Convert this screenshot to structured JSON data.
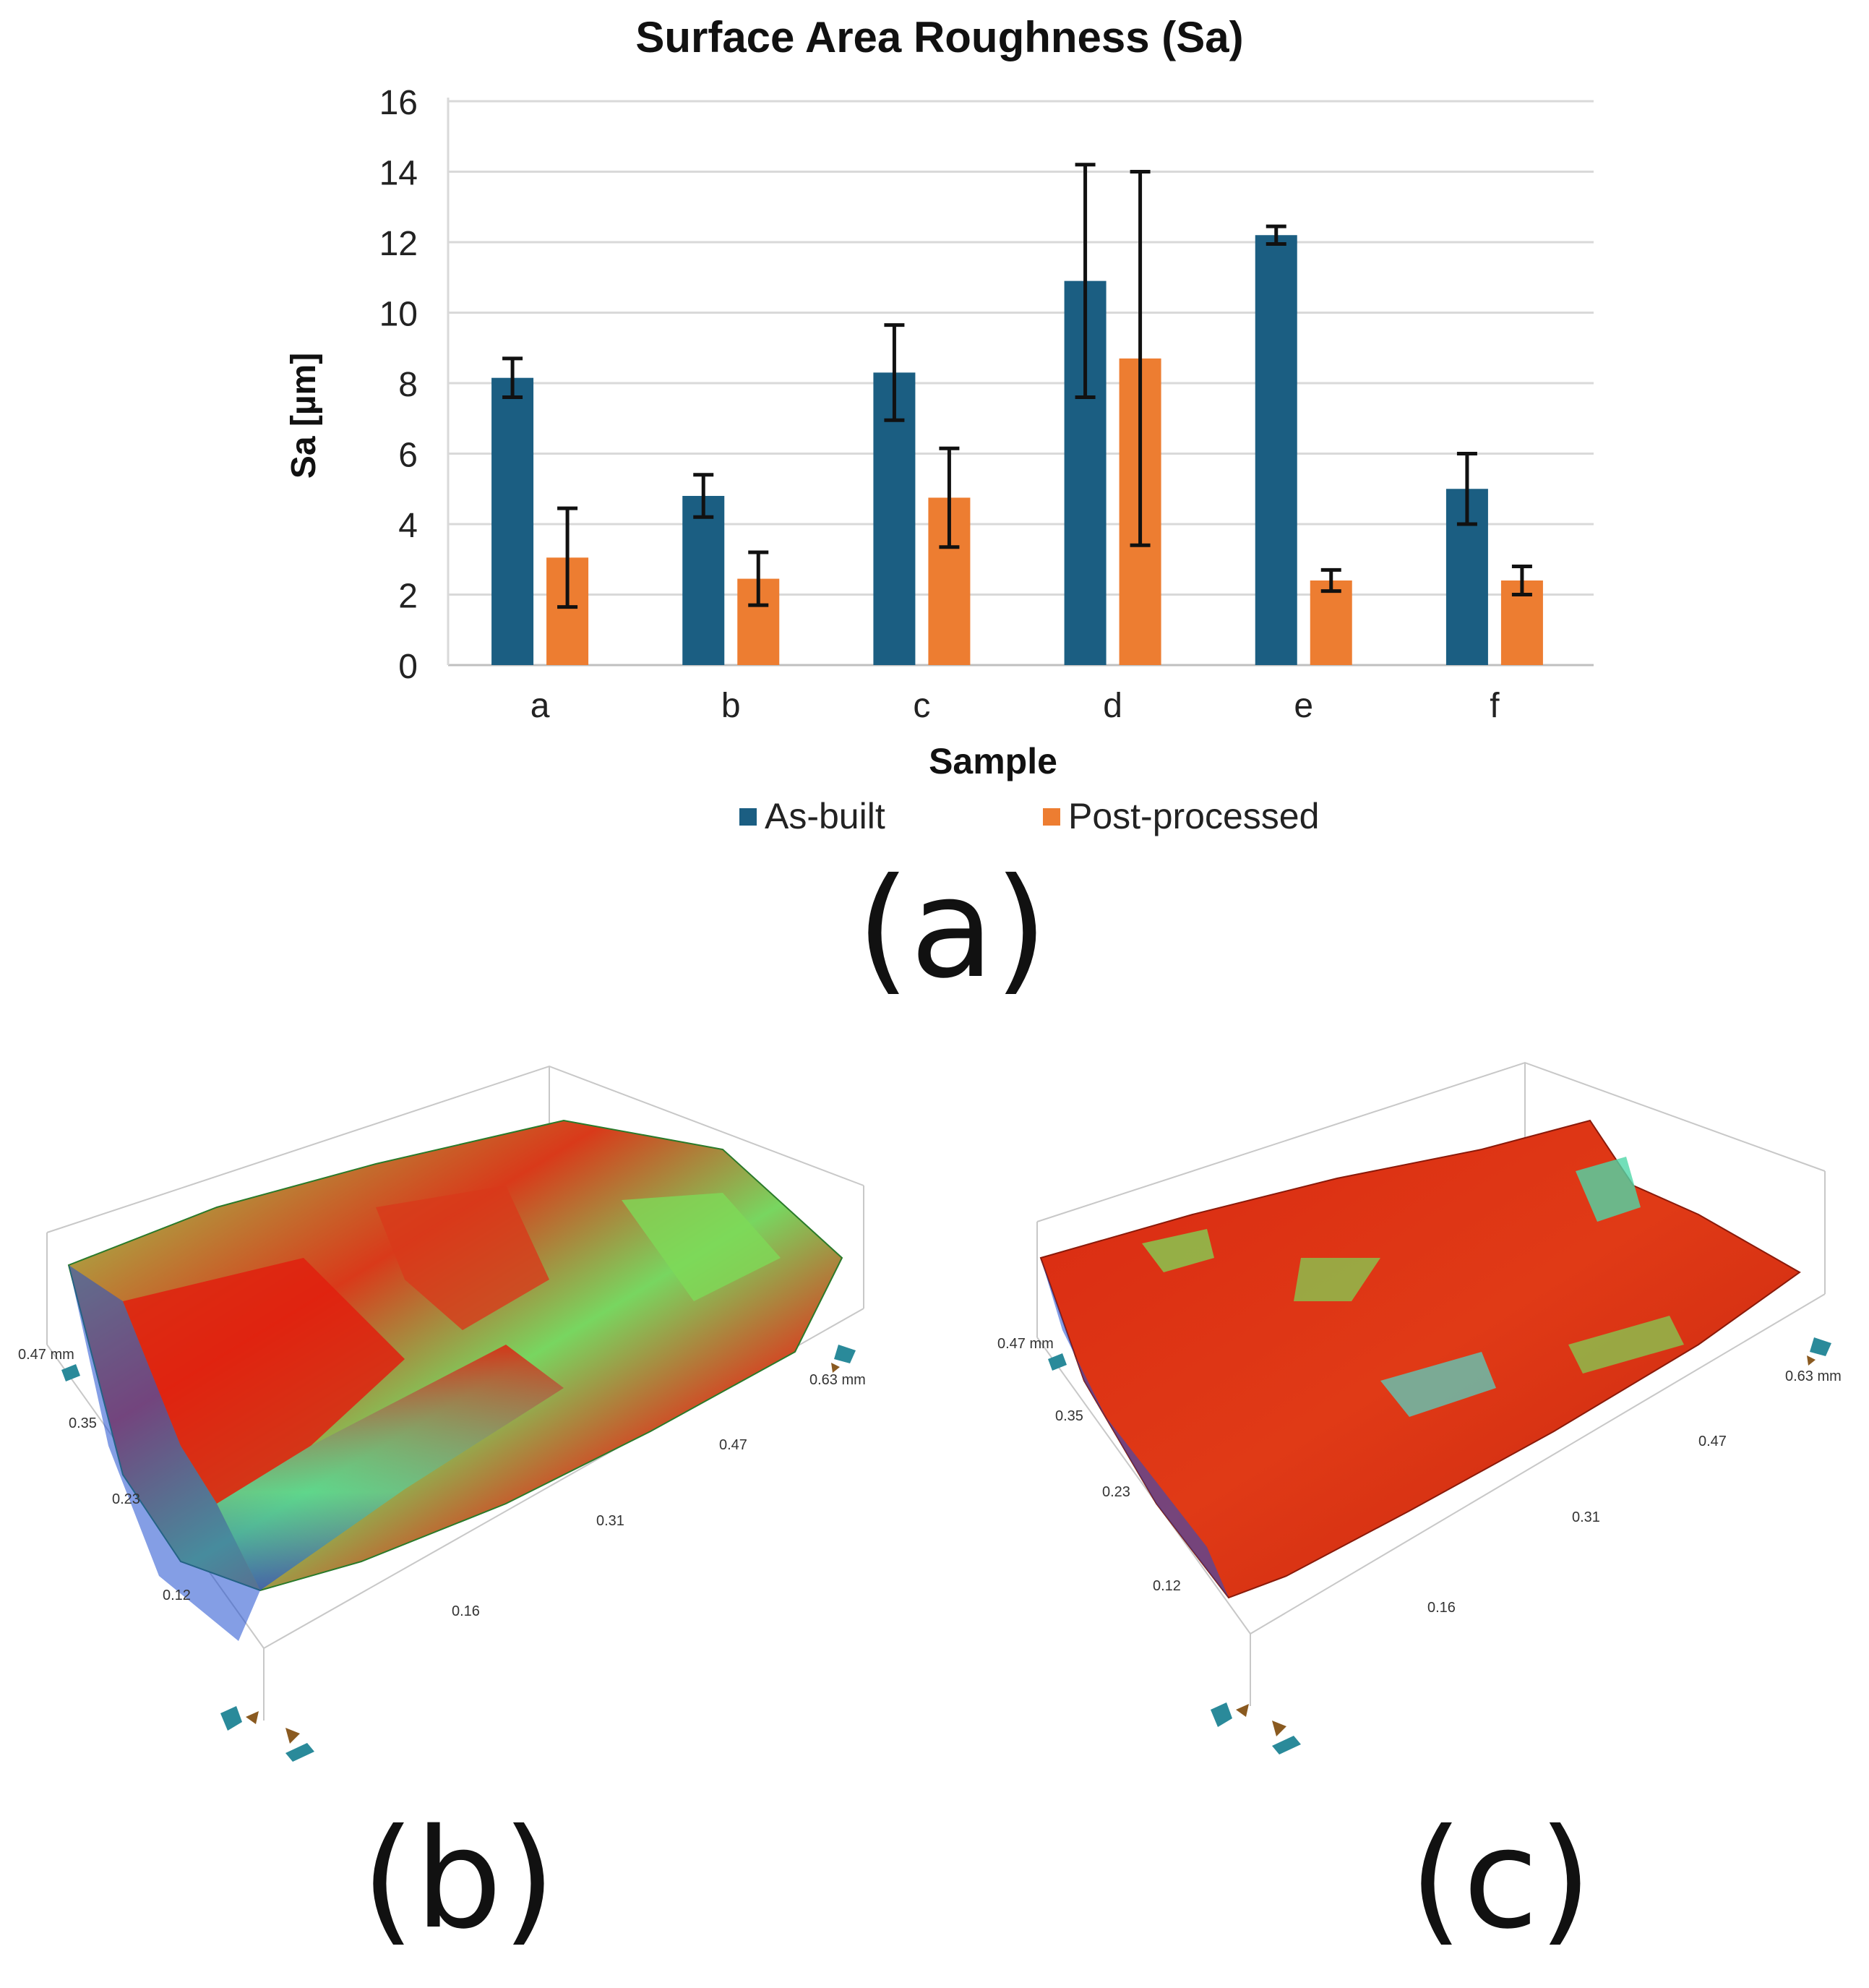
{
  "chart_data": {
    "type": "bar",
    "title": "Surface Area Roughness (Sa)",
    "xlabel": "Sample",
    "ylabel": "Sa [µm]",
    "ylim": [
      0,
      16
    ],
    "yticks": [
      "0",
      "2",
      "4",
      "6",
      "8",
      "10",
      "12",
      "14",
      "16"
    ],
    "categories": [
      "a",
      "b",
      "c",
      "d",
      "e",
      "f"
    ],
    "series": [
      {
        "name": "As-built",
        "color": "#1b5e82",
        "values": [
          8.15,
          4.8,
          8.3,
          10.9,
          12.2,
          5.0
        ],
        "errors": [
          0.55,
          0.6,
          1.35,
          3.3,
          0.25,
          1.0
        ]
      },
      {
        "name": "Post-processed",
        "color": "#ed7d31",
        "values": [
          3.05,
          2.45,
          4.75,
          8.7,
          2.4,
          2.4
        ],
        "errors": [
          1.4,
          0.75,
          1.4,
          5.3,
          0.3,
          0.4
        ]
      }
    ],
    "grid": true,
    "legend_position": "bottom"
  },
  "panels": {
    "a": "(a)",
    "b": "(b)",
    "c": "(c)"
  },
  "surface_b": {
    "y_axis_label": "0.47 mm",
    "y_ticks": [
      "0.35",
      "0.23",
      "0.12"
    ],
    "x_axis_label": "0.63 mm",
    "x_ticks": [
      "0.47",
      "0.31",
      "0.16"
    ]
  },
  "surface_c": {
    "y_axis_label": "0.47 mm",
    "y_ticks": [
      "0.35",
      "0.23",
      "0.12"
    ],
    "x_axis_label": "0.63 mm",
    "x_ticks": [
      "0.47",
      "0.31",
      "0.16"
    ]
  },
  "colors": {
    "height_high": "#e0200e",
    "height_mid": "#7ed957",
    "height_low": "#1f4fd0"
  }
}
